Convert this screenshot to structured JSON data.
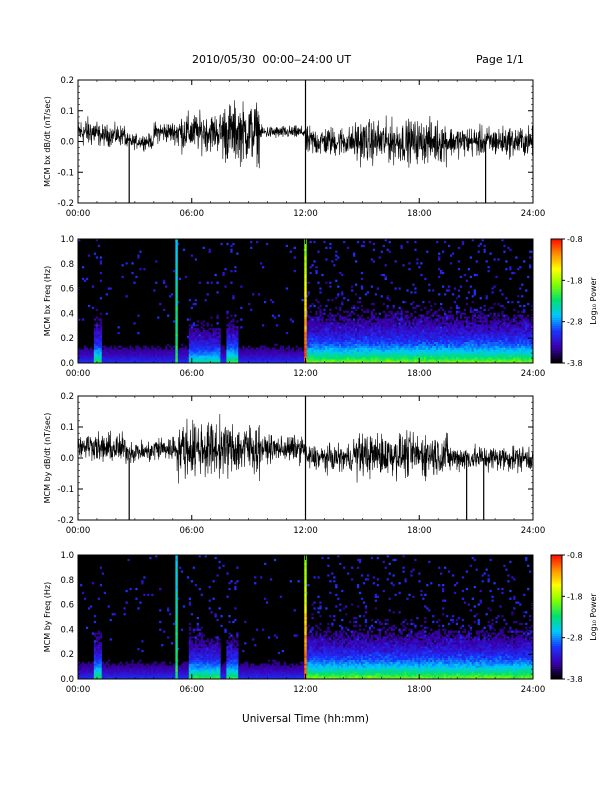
{
  "header": {
    "title": "2010/05/30  00:00‒24:00 UT",
    "page": "Page 1/1"
  },
  "xaxis_label": "Universal Time (hh:mm)",
  "colorbar": {
    "label": "Log₁₀ Power",
    "ticks": [
      "-0.8",
      "-1.8",
      "-2.8",
      "-3.8"
    ],
    "range": [
      -3.8,
      -0.8
    ],
    "colors": [
      "#000000",
      "#3b00b0",
      "#1a33ff",
      "#00c8ff",
      "#00e070",
      "#7fff00",
      "#ffff00",
      "#ff8c00",
      "#ff0000"
    ]
  },
  "chart_data": [
    {
      "type": "line",
      "ylabel": "MCM bx dB/dt (nT/sec)",
      "xlim": [
        0,
        24
      ],
      "ylim": [
        -0.2,
        0.2
      ],
      "xticks": [
        "00:00",
        "06:00",
        "12:00",
        "18:00",
        "24:00"
      ],
      "yticks": [
        "-0.2",
        "-0.1",
        "0.0",
        "0.1",
        "0.2"
      ],
      "color": "#000000",
      "segments": [
        {
          "t0": 0.0,
          "t1": 1.0,
          "mean": 0.03,
          "amp": 0.07
        },
        {
          "t0": 1.0,
          "t1": 2.5,
          "mean": 0.02,
          "amp": 0.05
        },
        {
          "t0": 2.5,
          "t1": 4.0,
          "mean": 0.0,
          "amp": 0.035
        },
        {
          "t0": 4.0,
          "t1": 5.2,
          "mean": 0.03,
          "amp": 0.05
        },
        {
          "t0": 5.2,
          "t1": 7.5,
          "mean": 0.03,
          "amp": 0.09
        },
        {
          "t0": 7.5,
          "t1": 9.6,
          "mean": 0.03,
          "amp": 0.14
        },
        {
          "t0": 9.6,
          "t1": 12.0,
          "mean": 0.03,
          "amp": 0.03
        },
        {
          "t0": 12.0,
          "t1": 14.5,
          "mean": 0.0,
          "amp": 0.07
        },
        {
          "t0": 14.5,
          "t1": 19.5,
          "mean": 0.0,
          "amp": 0.1
        },
        {
          "t0": 19.5,
          "t1": 24.0,
          "mean": 0.0,
          "amp": 0.07
        }
      ],
      "spikes": [
        {
          "t": 2.7,
          "min": -0.2,
          "max": 0.0
        },
        {
          "t": 12.0,
          "min": -0.2,
          "max": 0.2
        },
        {
          "t": 21.5,
          "min": -0.2,
          "max": 0.0
        }
      ]
    },
    {
      "type": "heatmap",
      "ylabel": "MCM bx Freq (Hz)",
      "xlim": [
        0,
        24
      ],
      "ylim": [
        0.0,
        1.0
      ],
      "xticks": [
        "00:00",
        "06:00",
        "12:00",
        "18:00",
        "24:00"
      ],
      "yticks": [
        "0.0",
        "0.2",
        "0.4",
        "0.6",
        "0.8",
        "1.0"
      ],
      "vlines": [
        {
          "t": 5.2,
          "level": -2.2
        },
        {
          "t": 12.0,
          "level": -1.2
        }
      ],
      "activity": [
        {
          "t0": 0.8,
          "t1": 1.3,
          "level": 0.8
        },
        {
          "t0": 5.8,
          "t1": 7.5,
          "level": 0.7
        },
        {
          "t0": 7.8,
          "t1": 8.5,
          "level": 0.8
        },
        {
          "t0": 12.0,
          "t1": 24.0,
          "level": 0.9
        }
      ]
    },
    {
      "type": "line",
      "ylabel": "MCM by dB/dt (nT/sec)",
      "xlim": [
        0,
        24
      ],
      "ylim": [
        -0.2,
        0.2
      ],
      "xticks": [
        "00:00",
        "06:00",
        "12:00",
        "18:00",
        "24:00"
      ],
      "yticks": [
        "-0.2",
        "-0.1",
        "0.0",
        "0.1",
        "0.2"
      ],
      "color": "#000000",
      "segments": [
        {
          "t0": 0.0,
          "t1": 1.0,
          "mean": 0.04,
          "amp": 0.06
        },
        {
          "t0": 1.0,
          "t1": 2.5,
          "mean": 0.03,
          "amp": 0.07
        },
        {
          "t0": 2.5,
          "t1": 4.0,
          "mean": 0.02,
          "amp": 0.05
        },
        {
          "t0": 4.0,
          "t1": 5.2,
          "mean": 0.03,
          "amp": 0.06
        },
        {
          "t0": 5.2,
          "t1": 7.5,
          "mean": 0.03,
          "amp": 0.13
        },
        {
          "t0": 7.5,
          "t1": 9.6,
          "mean": 0.03,
          "amp": 0.12
        },
        {
          "t0": 9.6,
          "t1": 12.0,
          "mean": 0.03,
          "amp": 0.06
        },
        {
          "t0": 12.0,
          "t1": 14.5,
          "mean": 0.0,
          "amp": 0.06
        },
        {
          "t0": 14.5,
          "t1": 19.5,
          "mean": 0.01,
          "amp": 0.1
        },
        {
          "t0": 19.5,
          "t1": 24.0,
          "mean": 0.0,
          "amp": 0.06
        }
      ],
      "spikes": [
        {
          "t": 2.7,
          "min": -0.2,
          "max": 0.0
        },
        {
          "t": 12.0,
          "min": -0.2,
          "max": 0.2
        },
        {
          "t": 20.5,
          "min": -0.2,
          "max": 0.0
        },
        {
          "t": 21.4,
          "min": -0.2,
          "max": 0.0
        }
      ]
    },
    {
      "type": "heatmap",
      "ylabel": "MCM by Freq (Hz)",
      "xlim": [
        0,
        24
      ],
      "ylim": [
        0.0,
        1.0
      ],
      "xticks": [
        "00:00",
        "06:00",
        "12:00",
        "18:00",
        "24:00"
      ],
      "yticks": [
        "0.0",
        "0.2",
        "0.4",
        "0.6",
        "0.8",
        "1.0"
      ],
      "vlines": [
        {
          "t": 5.2,
          "level": -2.2
        },
        {
          "t": 12.0,
          "level": -1.2
        }
      ],
      "activity": [
        {
          "t0": 0.8,
          "t1": 1.3,
          "level": 0.8
        },
        {
          "t0": 5.8,
          "t1": 7.5,
          "level": 0.8
        },
        {
          "t0": 7.8,
          "t1": 8.5,
          "level": 0.8
        },
        {
          "t0": 12.0,
          "t1": 24.0,
          "level": 0.9
        }
      ]
    }
  ]
}
